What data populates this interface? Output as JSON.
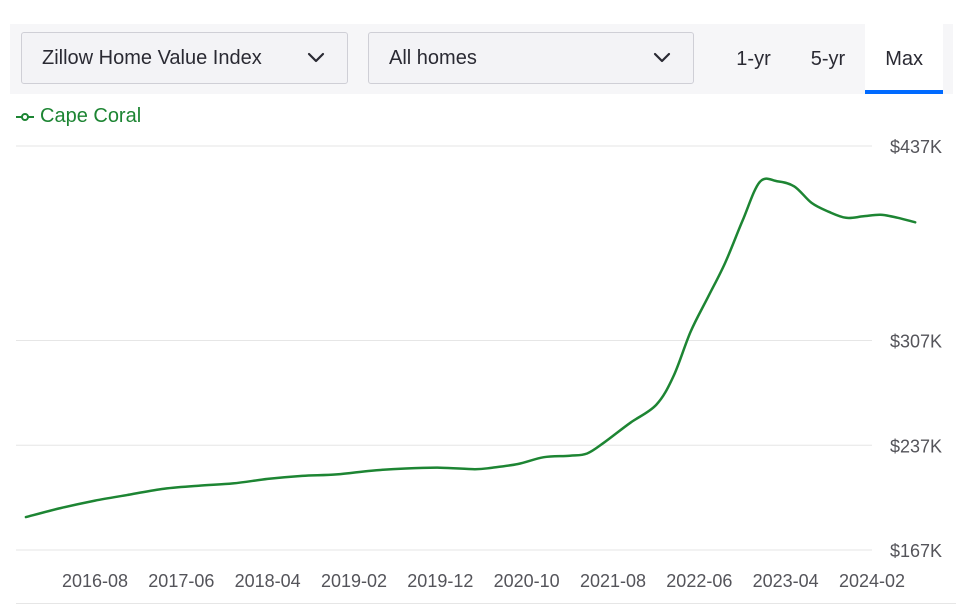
{
  "controls": {
    "metric_label": "Zillow Home Value Index",
    "home_type_label": "All homes",
    "tabs": [
      {
        "label": "1-yr",
        "active": false
      },
      {
        "label": "5-yr",
        "active": false
      },
      {
        "label": "Max",
        "active": true
      }
    ]
  },
  "colors": {
    "series": "#1d8533",
    "accent": "#006aff",
    "grid": "#e6e6e6"
  },
  "chart_data": {
    "type": "line",
    "title": "",
    "xlabel": "",
    "ylabel": "",
    "ylim": [
      167000,
      437000
    ],
    "y_ticks": [
      {
        "value": 437000,
        "label": "$437K"
      },
      {
        "value": 307000,
        "label": "$307K"
      },
      {
        "value": 237000,
        "label": "$237K"
      },
      {
        "value": 167000,
        "label": "$167K"
      }
    ],
    "x_ticks": [
      "2016-08",
      "2017-06",
      "2018-04",
      "2019-02",
      "2019-12",
      "2020-10",
      "2021-08",
      "2022-06",
      "2023-04",
      "2024-02"
    ],
    "legend": "top-left",
    "grid": true,
    "series": [
      {
        "name": "Cape Coral",
        "points": [
          {
            "x": "2015-12",
            "y": 189000
          },
          {
            "x": "2016-04",
            "y": 195000
          },
          {
            "x": "2016-08",
            "y": 200000
          },
          {
            "x": "2016-12",
            "y": 204000
          },
          {
            "x": "2017-04",
            "y": 208000
          },
          {
            "x": "2017-08",
            "y": 210000
          },
          {
            "x": "2017-12",
            "y": 211500
          },
          {
            "x": "2018-04",
            "y": 214500
          },
          {
            "x": "2018-08",
            "y": 216500
          },
          {
            "x": "2018-12",
            "y": 217500
          },
          {
            "x": "2019-04",
            "y": 220000
          },
          {
            "x": "2019-08",
            "y": 221500
          },
          {
            "x": "2019-12",
            "y": 222000
          },
          {
            "x": "2020-04",
            "y": 221000
          },
          {
            "x": "2020-06",
            "y": 222000
          },
          {
            "x": "2020-09",
            "y": 224500
          },
          {
            "x": "2020-12",
            "y": 229000
          },
          {
            "x": "2021-03",
            "y": 230000
          },
          {
            "x": "2021-05",
            "y": 231500
          },
          {
            "x": "2021-07",
            "y": 239000
          },
          {
            "x": "2021-10",
            "y": 252000
          },
          {
            "x": "2022-01",
            "y": 264000
          },
          {
            "x": "2022-03",
            "y": 283000
          },
          {
            "x": "2022-05",
            "y": 313000
          },
          {
            "x": "2022-07",
            "y": 336000
          },
          {
            "x": "2022-09",
            "y": 359000
          },
          {
            "x": "2022-11",
            "y": 387000
          },
          {
            "x": "2023-01",
            "y": 413000
          },
          {
            "x": "2023-03",
            "y": 413500
          },
          {
            "x": "2023-05",
            "y": 410000
          },
          {
            "x": "2023-07",
            "y": 399000
          },
          {
            "x": "2023-09",
            "y": 393000
          },
          {
            "x": "2023-11",
            "y": 389000
          },
          {
            "x": "2024-01",
            "y": 390000
          },
          {
            "x": "2024-03",
            "y": 391000
          },
          {
            "x": "2024-05",
            "y": 389000
          },
          {
            "x": "2024-07",
            "y": 386000
          }
        ]
      }
    ]
  }
}
